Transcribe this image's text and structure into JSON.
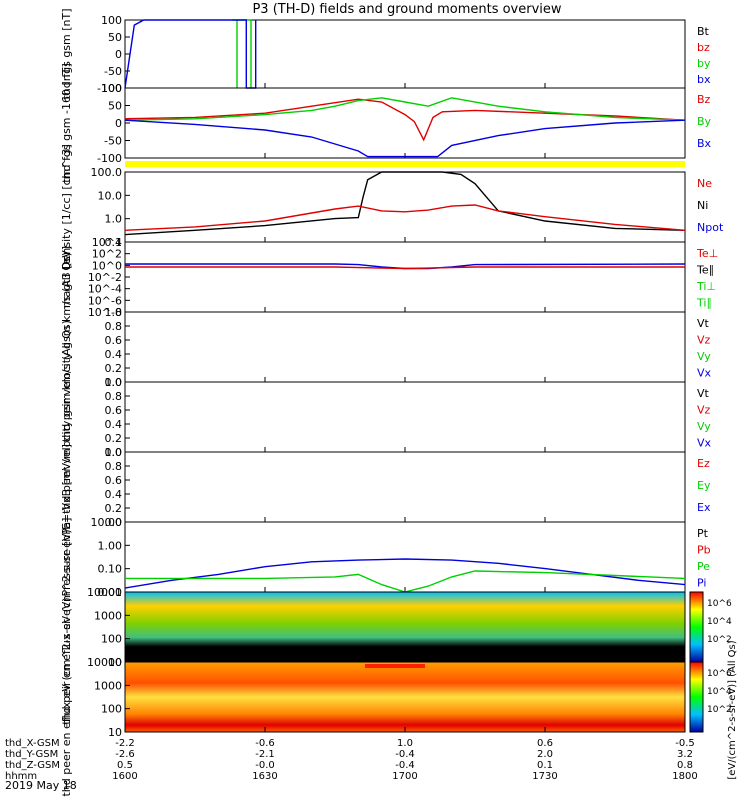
{
  "title": "P3 (TH-D) fields and ground moments overview",
  "colors": {
    "black": "#000000",
    "red": "#e00000",
    "green": "#00d000",
    "blue": "#0000e0",
    "yellow": "#ffff00"
  },
  "time_axis": {
    "date": "2019 May 18",
    "ticks": [
      "1600",
      "1630",
      "1700",
      "1730",
      "1800"
    ],
    "rows": [
      {
        "name": "thd_X-GSM",
        "values": [
          "-2.2",
          "-0.6",
          "1.0",
          "0.6",
          "-0.5"
        ]
      },
      {
        "name": "thd_Y-GSM",
        "values": [
          "-2.6",
          "-2.1",
          "-0.4",
          "2.0",
          "3.2"
        ]
      },
      {
        "name": "thd_Z-GSM",
        "values": [
          "0.5",
          "-0.0",
          "-0.4",
          "0.1",
          "0.8"
        ]
      },
      {
        "name": "hhmm",
        "values": [
          "1600",
          "1630",
          "1700",
          "1730",
          "1800"
        ]
      }
    ]
  },
  "chart_data": [
    {
      "type": "line",
      "ylabel": "thd fgs gsm [nT]",
      "ylim": [
        -100,
        100
      ],
      "yticks": [
        "100",
        "50",
        "0",
        "-50",
        "-100"
      ],
      "legend": [
        {
          "label": "Bt",
          "color": "#000000"
        },
        {
          "label": "bz",
          "color": "#e00000"
        },
        {
          "label": "by",
          "color": "#00d000"
        },
        {
          "label": "bx",
          "color": "#0000e0"
        }
      ],
      "series": [
        {
          "name": "by",
          "color": "#00d000",
          "x": [
            "1623",
            "1624",
            "1624",
            "1624",
            "1624.5",
            "1627",
            "1627"
          ],
          "y": [
            100,
            100,
            -100,
            100,
            100,
            100,
            -100
          ]
        },
        {
          "name": "bx",
          "color": "#0000e0",
          "x": [
            "1600",
            "1602",
            "1604",
            "1626",
            "1626",
            "1628",
            "1628"
          ],
          "y": [
            -100,
            85,
            100,
            100,
            -100,
            -100,
            100
          ]
        }
      ]
    },
    {
      "type": "line",
      "ylabel": "thd fgs gsm -160 [nT]",
      "ylim": [
        -125,
        125
      ],
      "yticks": [
        "100",
        "50",
        "0",
        "-50",
        "-100"
      ],
      "legend": [
        {
          "label": "Bz",
          "color": "#e00000"
        },
        {
          "label": "By",
          "color": "#00d000"
        },
        {
          "label": "Bx",
          "color": "#0000e0"
        }
      ],
      "series": [
        {
          "name": "Bz",
          "color": "#e00000",
          "x": [
            "1600",
            "1615",
            "1630",
            "1640",
            "1650",
            "1655",
            "1700",
            "1702",
            "1704",
            "1706",
            "1708",
            "1715",
            "1730",
            "1745",
            "1800"
          ],
          "y": [
            15,
            20,
            35,
            60,
            85,
            75,
            30,
            5,
            -60,
            20,
            40,
            45,
            35,
            25,
            10
          ]
        },
        {
          "name": "By",
          "color": "#00d000",
          "x": [
            "1600",
            "1615",
            "1630",
            "1640",
            "1645",
            "1650",
            "1655",
            "1700",
            "1705",
            "1710",
            "1720",
            "1730",
            "1745",
            "1800"
          ],
          "y": [
            10,
            15,
            30,
            45,
            60,
            80,
            90,
            75,
            60,
            90,
            60,
            40,
            20,
            10
          ]
        },
        {
          "name": "Bx",
          "color": "#0000e0",
          "x": [
            "1600",
            "1615",
            "1630",
            "1640",
            "1645",
            "1650",
            "1652",
            "1705",
            "1707",
            "1710",
            "1720",
            "1730",
            "1745",
            "1800"
          ],
          "y": [
            10,
            -5,
            -25,
            -50,
            -75,
            -100,
            -120,
            -120,
            -120,
            -80,
            -45,
            -20,
            0,
            10
          ]
        }
      ]
    },
    {
      "type": "line",
      "ylabel": "Density [1/cc] [cm^-3]",
      "log_scale": true,
      "ylim": [
        0.05,
        200
      ],
      "yticks": [
        "100.0",
        "10.0",
        "1.0",
        "0.1"
      ],
      "legend": [
        {
          "label": "Ne",
          "color": "#e00000"
        },
        {
          "label": "Ni",
          "color": "#000000"
        },
        {
          "label": "Npot",
          "color": "#0000e0"
        }
      ],
      "series": [
        {
          "name": "Ni",
          "color": "#000000",
          "x": [
            "1600",
            "1615",
            "1630",
            "1645",
            "1650",
            "1651",
            "1652",
            "1655",
            "1700",
            "1705",
            "1708",
            "1712",
            "1715",
            "1720",
            "1730",
            "1745",
            "1800"
          ],
          "y": [
            0.12,
            0.2,
            0.35,
            0.8,
            0.9,
            10,
            80,
            200,
            200,
            200,
            200,
            150,
            50,
            2,
            0.6,
            0.25,
            0.2
          ]
        },
        {
          "name": "Ne",
          "color": "#e00000",
          "x": [
            "1600",
            "1615",
            "1630",
            "1645",
            "1650",
            "1655",
            "1700",
            "1705",
            "1710",
            "1715",
            "1720",
            "1730",
            "1745",
            "1800"
          ],
          "y": [
            0.2,
            0.3,
            0.6,
            2.5,
            3.5,
            2.0,
            1.8,
            2.2,
            3.5,
            4.0,
            2.0,
            1.0,
            0.4,
            0.2
          ]
        }
      ]
    },
    {
      "type": "line",
      "ylabel": "magt3 [eV]",
      "log_scale": true,
      "yticks": [
        "10^4",
        "10^2",
        "10^0",
        "10^-2",
        "10^-4",
        "10^-6",
        "10^-8"
      ],
      "legend": [
        {
          "label": "Te⊥",
          "color": "#e00000"
        },
        {
          "label": "Te∥",
          "color": "#000000"
        },
        {
          "label": "Ti⊥",
          "color": "#00d000"
        },
        {
          "label": "Ti∥",
          "color": "#00d000"
        }
      ],
      "series": [
        {
          "name": "Ti",
          "color": "#0000e0",
          "x": [
            "1600",
            "1645",
            "1650",
            "1655",
            "1700",
            "1705",
            "1710",
            "1715",
            "1800"
          ],
          "y": [
            4,
            4,
            3,
            1,
            0.5,
            0.5,
            1,
            3,
            4
          ]
        },
        {
          "name": "Te",
          "color": "#e00000",
          "x": [
            "1600",
            "1645",
            "1655",
            "1700",
            "1705",
            "1715",
            "1800"
          ],
          "y": [
            1,
            1,
            0.6,
            0.5,
            0.6,
            1,
            1
          ]
        }
      ]
    },
    {
      "type": "line",
      "ylabel": "thd peir velocity gsm km/s (All Qs)",
      "ylim": [
        0,
        1
      ],
      "yticks": [
        "1.0",
        "0.8",
        "0.6",
        "0.4",
        "0.2",
        "0.0"
      ],
      "legend": [
        {
          "label": "Vt",
          "color": "#000000"
        },
        {
          "label": "Vz",
          "color": "#e00000"
        },
        {
          "label": "Vy",
          "color": "#00d000"
        },
        {
          "label": "Vx",
          "color": "#0000e0"
        }
      ],
      "series": []
    },
    {
      "type": "line",
      "ylabel": "thd peer velocity gsm km/s (All Qs)",
      "ylim": [
        0,
        1
      ],
      "yticks": [
        "1.0",
        "0.8",
        "0.6",
        "0.4",
        "0.2",
        "0.0"
      ],
      "legend": [
        {
          "label": "Vt",
          "color": "#000000"
        },
        {
          "label": "Vz",
          "color": "#e00000"
        },
        {
          "label": "Vy",
          "color": "#00d000"
        },
        {
          "label": "Vx",
          "color": "#0000e0"
        }
      ],
      "series": []
    },
    {
      "type": "line",
      "ylabel": "E=-VxB [mV/m]",
      "ylim": [
        0,
        1
      ],
      "yticks": [
        "1.0",
        "0.8",
        "0.6",
        "0.4",
        "0.2",
        "0.0"
      ],
      "legend": [
        {
          "label": "Ez",
          "color": "#e00000"
        },
        {
          "label": "Ey",
          "color": "#00d000"
        },
        {
          "label": "Ex",
          "color": "#0000e0"
        }
      ],
      "series": []
    },
    {
      "type": "line",
      "ylabel": "Pressure [nPa]",
      "log_scale": true,
      "ylim": [
        0.005,
        20
      ],
      "yticks": [
        "10.00",
        "1.00",
        "0.10",
        "0.01"
      ],
      "legend": [
        {
          "label": "Pt",
          "color": "#000000"
        },
        {
          "label": "Pb",
          "color": "#e00000"
        },
        {
          "label": "Pe",
          "color": "#00d000"
        },
        {
          "label": "Pi",
          "color": "#0000e0"
        }
      ],
      "series": [
        {
          "name": "Pi",
          "color": "#0000e0",
          "x": [
            "1600",
            "1610",
            "1620",
            "1630",
            "1640",
            "1650",
            "1700",
            "1710",
            "1720",
            "1730",
            "1740",
            "1750",
            "1800"
          ],
          "y": [
            0.008,
            0.02,
            0.04,
            0.1,
            0.18,
            0.22,
            0.25,
            0.22,
            0.15,
            0.08,
            0.04,
            0.02,
            0.012
          ]
        },
        {
          "name": "Pe",
          "color": "#00d000",
          "x": [
            "1600",
            "1630",
            "1645",
            "1650",
            "1655",
            "1700",
            "1705",
            "1710",
            "1715",
            "1730",
            "1800"
          ],
          "y": [
            0.025,
            0.025,
            0.03,
            0.04,
            0.012,
            0.005,
            0.01,
            0.03,
            0.06,
            0.05,
            0.025
          ]
        }
      ]
    },
    {
      "type": "heatmap",
      "ylabel": "thd peir en eflux eV (cm^2-s-sr-eV)",
      "log_scale": true,
      "yticks": [
        "10000",
        "1000",
        "100",
        "10"
      ],
      "colorbar_ticks": [
        "10^6",
        "10^4",
        "10^2"
      ]
    },
    {
      "type": "heatmap",
      "ylabel": "thd peer en eflux eV (cm^2-s-sr-eV)",
      "log_scale": true,
      "yticks": [
        "10000",
        "1000",
        "100",
        "10"
      ],
      "colorbar_ticks": [
        "10^6",
        "10^4",
        "10^2"
      ]
    }
  ],
  "colorbar_label": "[eV/(cm^2-s-sr-eV)] (All Qs)"
}
